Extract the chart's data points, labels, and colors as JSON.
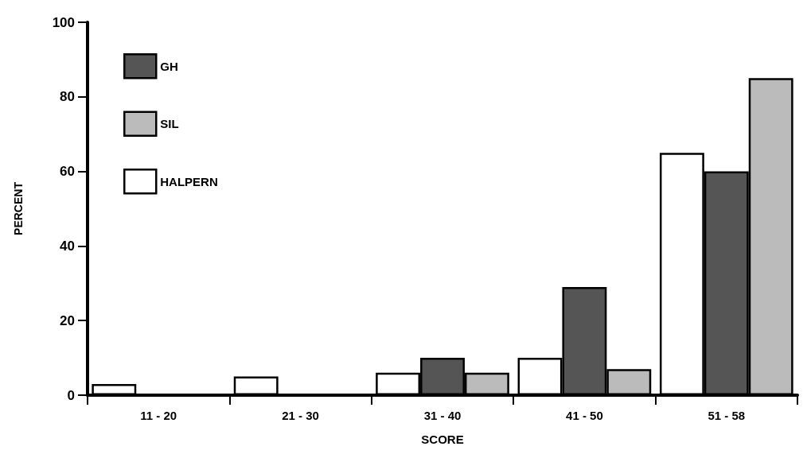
{
  "chart_data": {
    "type": "bar",
    "xlabel": "SCORE",
    "ylabel": "PERCENT",
    "categories": [
      "11 - 20",
      "21 - 30",
      "31 - 40",
      "41 - 50",
      "51 - 58"
    ],
    "series": [
      {
        "name": "HALPERN",
        "color": "#ffffff",
        "values": [
          3,
          5,
          6,
          10,
          65
        ]
      },
      {
        "name": "GH",
        "color": "#555555",
        "values": [
          0,
          0,
          10,
          29,
          60
        ]
      },
      {
        "name": "SIL",
        "color": "#bbbbbb",
        "values": [
          0,
          0,
          6,
          7,
          85
        ]
      }
    ],
    "ylim": [
      0,
      100
    ],
    "yticks": [
      0,
      20,
      40,
      60,
      80,
      100
    ],
    "grid": false,
    "legend": "top left"
  }
}
